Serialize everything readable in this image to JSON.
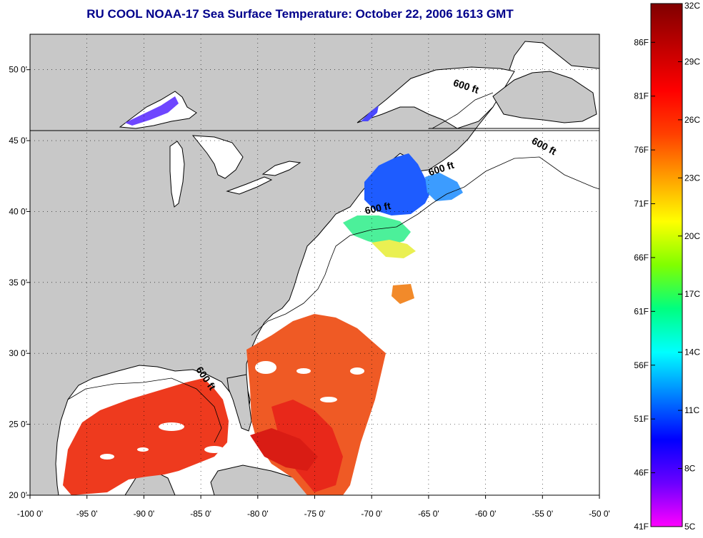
{
  "title": "RU COOL  NOAA-17  Sea Surface Temperature:  October 22, 2006 1613 GMT",
  "map": {
    "lon_range": [
      -100,
      -50
    ],
    "lat_range": [
      20,
      52.5
    ],
    "lon_ticks": [
      {
        "value": -100,
        "label": "-100 0'"
      },
      {
        "value": -95,
        "label": "-95 0'"
      },
      {
        "value": -90,
        "label": "-90 0'"
      },
      {
        "value": -85,
        "label": "-85 0'"
      },
      {
        "value": -80,
        "label": "-80 0'"
      },
      {
        "value": -75,
        "label": "-75 0'"
      },
      {
        "value": -70,
        "label": "-70 0'"
      },
      {
        "value": -65,
        "label": "-65 0'"
      },
      {
        "value": -60,
        "label": "-60 0'"
      },
      {
        "value": -55,
        "label": "-55 0'"
      },
      {
        "value": -50,
        "label": "-50 0'"
      }
    ],
    "lat_ticks": [
      {
        "value": 20,
        "label": "20 0'"
      },
      {
        "value": 25,
        "label": "25 0'"
      },
      {
        "value": 30,
        "label": "30 0'"
      },
      {
        "value": 35,
        "label": "35 0'"
      },
      {
        "value": 40,
        "label": "40 0'"
      },
      {
        "value": 45,
        "label": "45 0'"
      },
      {
        "value": 50,
        "label": "50 0'"
      }
    ],
    "contour_labels": [
      {
        "text": "600 ft",
        "lon": -61.8,
        "lat": 48.6,
        "angle": 18
      },
      {
        "text": "600 ft",
        "lon": -55,
        "lat": 44.4,
        "angle": 28
      },
      {
        "text": "600 ft",
        "lon": -63.8,
        "lat": 42.8,
        "angle": -18
      },
      {
        "text": "600 ft",
        "lon": -69.4,
        "lat": 40,
        "angle": -12
      },
      {
        "text": "600 ft",
        "lon": -84.8,
        "lat": 28.1,
        "angle": 55
      }
    ],
    "colors": {
      "land": "#c8c8c8",
      "water": "#ffffff",
      "coast": "#000000"
    }
  },
  "colorbar": {
    "labels_f": [
      {
        "value": 41,
        "label": "41F"
      },
      {
        "value": 46,
        "label": "46F"
      },
      {
        "value": 51,
        "label": "51F"
      },
      {
        "value": 56,
        "label": "56F"
      },
      {
        "value": 61,
        "label": "61F"
      },
      {
        "value": 66,
        "label": "66F"
      },
      {
        "value": 71,
        "label": "71F"
      },
      {
        "value": 76,
        "label": "76F"
      },
      {
        "value": 81,
        "label": "81F"
      },
      {
        "value": 86,
        "label": "86F"
      }
    ],
    "labels_c": [
      {
        "value": 5,
        "label": "5C"
      },
      {
        "value": 8,
        "label": "8C"
      },
      {
        "value": 11,
        "label": "11C"
      },
      {
        "value": 14,
        "label": "14C"
      },
      {
        "value": 17,
        "label": "17C"
      },
      {
        "value": 20,
        "label": "20C"
      },
      {
        "value": 23,
        "label": "23C"
      },
      {
        "value": 26,
        "label": "26C"
      },
      {
        "value": 29,
        "label": "29C"
      },
      {
        "value": 32,
        "label": "32C"
      }
    ],
    "range_c": [
      5,
      32
    ],
    "stops": [
      "#ff00ff",
      "#6a00ff",
      "#0000ff",
      "#0080ff",
      "#00ffff",
      "#00ff80",
      "#80ff00",
      "#ffff00",
      "#ffa000",
      "#ff4000",
      "#ff0000",
      "#c00000",
      "#800000"
    ]
  }
}
